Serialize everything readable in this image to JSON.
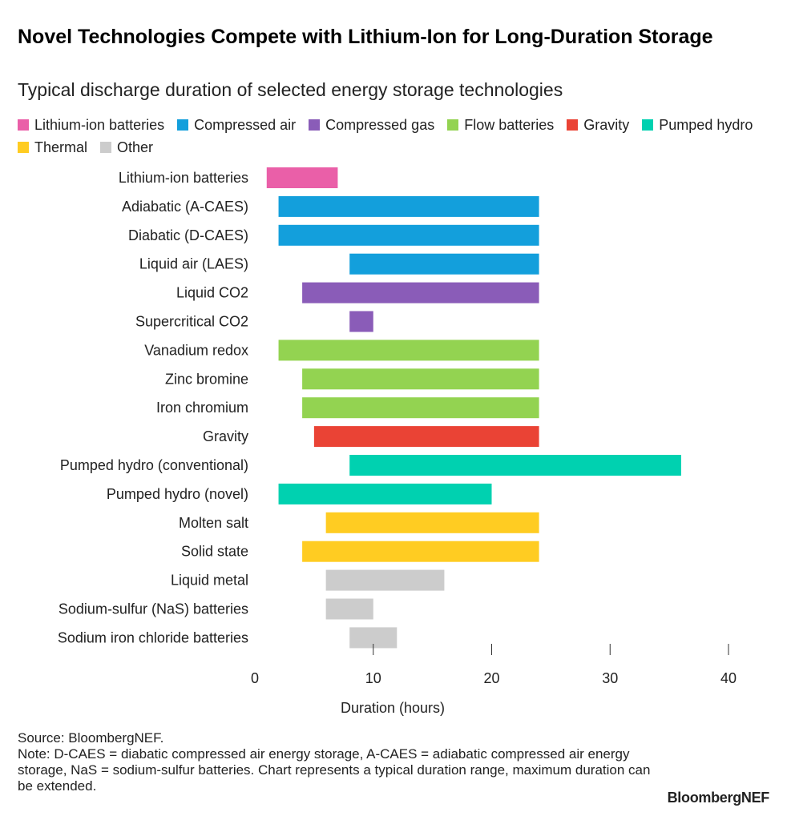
{
  "header": {
    "title": "Novel Technologies Compete with Lithium-Ion for Long-Duration Storage",
    "subtitle": "Typical discharge duration of selected energy storage technologies"
  },
  "legend": [
    {
      "label": "Lithium-ion batteries",
      "color": "#ea5fa8"
    },
    {
      "label": "Compressed air",
      "color": "#139fdc"
    },
    {
      "label": "Compressed gas",
      "color": "#8a5cb8"
    },
    {
      "label": "Flow batteries",
      "color": "#93d351"
    },
    {
      "label": "Gravity",
      "color": "#ea4335"
    },
    {
      "label": "Pumped hydro",
      "color": "#00d1b0"
    },
    {
      "label": "Thermal",
      "color": "#ffcc22"
    },
    {
      "label": "Other",
      "color": "#cccccc"
    }
  ],
  "chart_data": {
    "type": "bar",
    "orientation": "horizontal-range",
    "xlabel": "Duration (hours)",
    "xlim": [
      0,
      40
    ],
    "xticks": [
      0,
      10,
      20,
      30,
      40
    ],
    "grid": false,
    "legend_position": "top",
    "bars": [
      {
        "category": "Lithium-ion batteries",
        "group": "Lithium-ion batteries",
        "start": 1,
        "end": 7
      },
      {
        "category": "Adiabatic (A-CAES)",
        "group": "Compressed air",
        "start": 2,
        "end": 24
      },
      {
        "category": "Diabatic (D-CAES)",
        "group": "Compressed air",
        "start": 2,
        "end": 24
      },
      {
        "category": "Liquid air (LAES)",
        "group": "Compressed air",
        "start": 8,
        "end": 24
      },
      {
        "category": "Liquid CO2",
        "group": "Compressed gas",
        "start": 4,
        "end": 24
      },
      {
        "category": "Supercritical CO2",
        "group": "Compressed gas",
        "start": 8,
        "end": 10
      },
      {
        "category": "Vanadium redox",
        "group": "Flow batteries",
        "start": 2,
        "end": 24
      },
      {
        "category": "Zinc bromine",
        "group": "Flow batteries",
        "start": 4,
        "end": 24
      },
      {
        "category": "Iron chromium",
        "group": "Flow batteries",
        "start": 4,
        "end": 24
      },
      {
        "category": "Gravity",
        "group": "Gravity",
        "start": 5,
        "end": 24
      },
      {
        "category": "Pumped hydro (conventional)",
        "group": "Pumped hydro",
        "start": 8,
        "end": 36
      },
      {
        "category": "Pumped hydro (novel)",
        "group": "Pumped hydro",
        "start": 2,
        "end": 20
      },
      {
        "category": "Molten salt",
        "group": "Thermal",
        "start": 6,
        "end": 24
      },
      {
        "category": "Solid state",
        "group": "Thermal",
        "start": 4,
        "end": 24
      },
      {
        "category": "Liquid metal",
        "group": "Other",
        "start": 6,
        "end": 16
      },
      {
        "category": "Sodium-sulfur (NaS) batteries",
        "group": "Other",
        "start": 6,
        "end": 10
      },
      {
        "category": "Sodium iron chloride batteries",
        "group": "Other",
        "start": 8,
        "end": 12
      }
    ]
  },
  "footer": {
    "source": "Source: BloombergNEF.",
    "note": "Note: D-CAES = diabatic compressed air energy storage, A-CAES = adiabatic compressed air energy storage, NaS = sodium-sulfur batteries. Chart represents a typical duration range, maximum duration can be extended."
  },
  "brand": {
    "name": "BloombergNEF"
  }
}
